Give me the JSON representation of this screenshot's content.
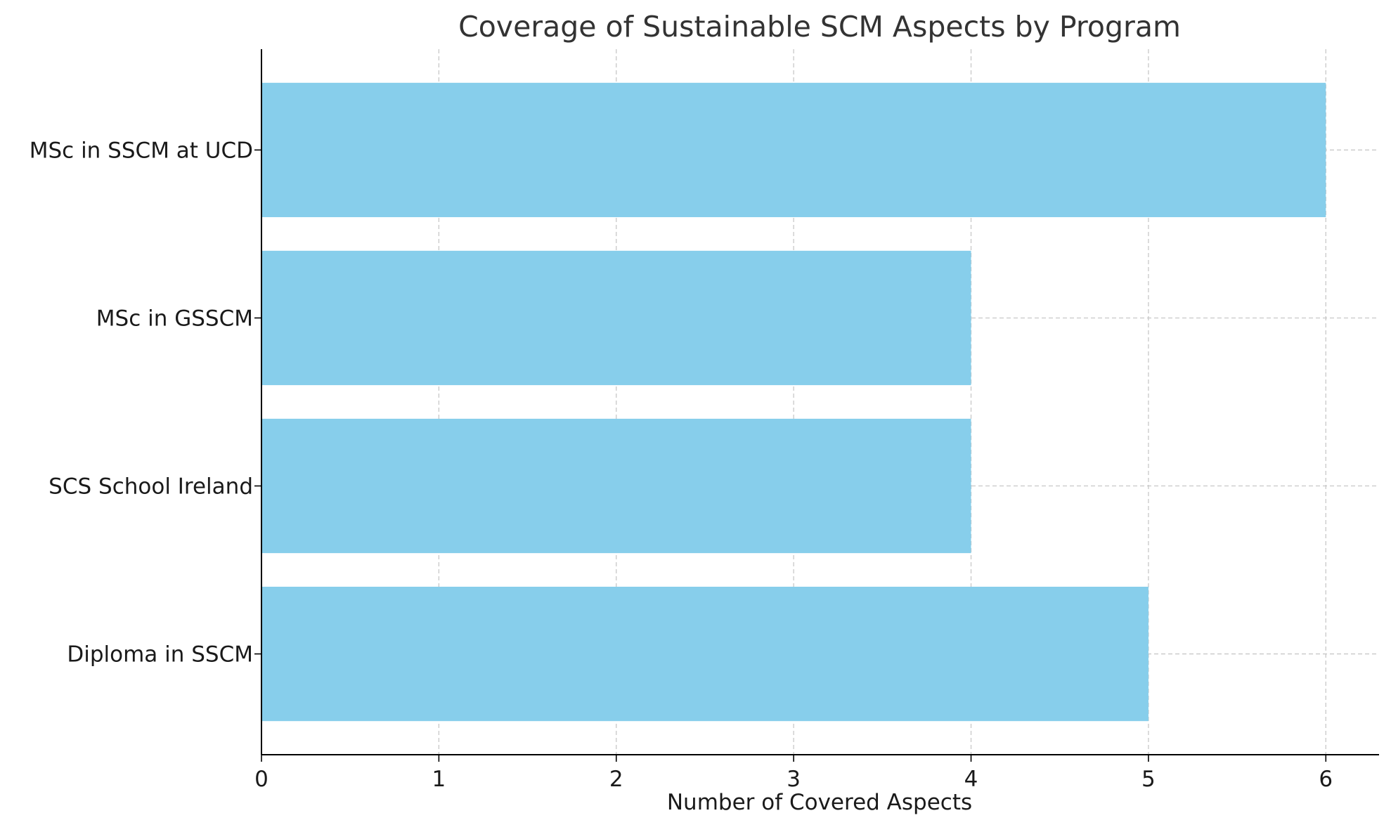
{
  "chart_data": {
    "type": "bar",
    "orientation": "horizontal",
    "title": "Coverage of Sustainable SCM Aspects by Program",
    "xlabel": "Number of Covered Aspects",
    "ylabel": "",
    "categories": [
      "Diploma in SSCM",
      "SCS School Ireland",
      "MSc in GSSCM",
      "MSc in SSCM at UCD"
    ],
    "values": [
      5,
      4,
      4,
      6
    ],
    "xlim": [
      0,
      6.3
    ],
    "xticks": [
      0,
      1,
      2,
      3,
      4,
      5,
      6
    ],
    "grid": true,
    "grid_style": "dashed",
    "legend": "none",
    "colors": {
      "bar": "#87CEEB",
      "axis": "#000000",
      "grid": "#c8c8c8",
      "text": "#1a1a1a",
      "title": "#333333"
    }
  }
}
